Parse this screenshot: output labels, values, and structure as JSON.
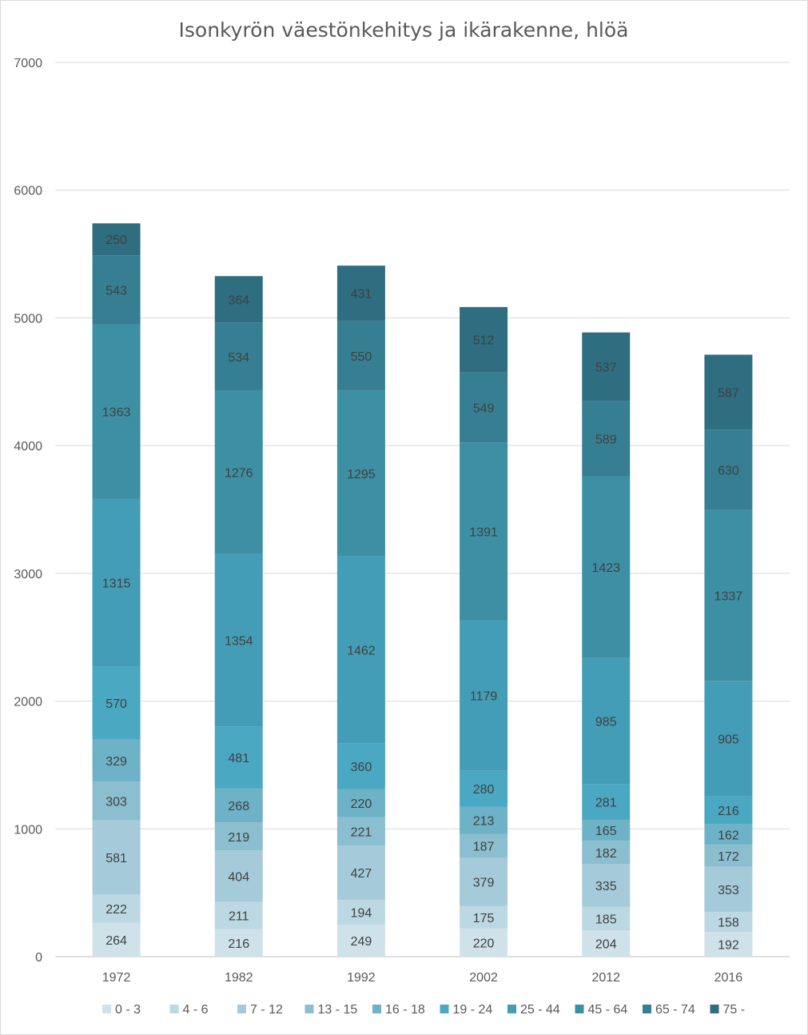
{
  "chart_data": {
    "type": "bar",
    "stacked": true,
    "title": "Isonkyrön väestönkehitys ja ikärakenne, hlöä",
    "xlabel": "",
    "ylabel": "",
    "ylim": [
      0,
      7000
    ],
    "yticks": [
      0,
      1000,
      2000,
      3000,
      4000,
      5000,
      6000,
      7000
    ],
    "grid": true,
    "legend_position": "bottom",
    "categories": [
      "1972",
      "1982",
      "1992",
      "2002",
      "2012",
      "2016"
    ],
    "series": [
      {
        "name": "0 - 3",
        "color": "#cfe2ea",
        "values": [
          264,
          216,
          249,
          220,
          204,
          192
        ]
      },
      {
        "name": "4 - 6",
        "color": "#bcd8e3",
        "values": [
          222,
          211,
          194,
          175,
          185,
          158
        ]
      },
      {
        "name": "7 - 12",
        "color": "#a5cbda",
        "values": [
          581,
          404,
          427,
          379,
          335,
          353
        ]
      },
      {
        "name": "13 - 15",
        "color": "#8bbecf",
        "values": [
          303,
          219,
          221,
          187,
          182,
          172
        ]
      },
      {
        "name": "16 - 18",
        "color": "#6eb2c7",
        "values": [
          329,
          268,
          220,
          213,
          165,
          162
        ]
      },
      {
        "name": "19 - 24",
        "color": "#4aa8c2",
        "values": [
          570,
          481,
          360,
          280,
          281,
          216
        ]
      },
      {
        "name": "25 - 44",
        "color": "#439db6",
        "values": [
          1315,
          1354,
          1462,
          1179,
          985,
          905
        ]
      },
      {
        "name": "45 - 64",
        "color": "#3d8fa4",
        "values": [
          1363,
          1276,
          1295,
          1391,
          1423,
          1337
        ]
      },
      {
        "name": "65 - 74",
        "color": "#367f92",
        "values": [
          543,
          534,
          550,
          549,
          589,
          630
        ]
      },
      {
        "name": "75 -",
        "color": "#2e6e80",
        "values": [
          250,
          364,
          431,
          512,
          537,
          587
        ]
      }
    ]
  }
}
